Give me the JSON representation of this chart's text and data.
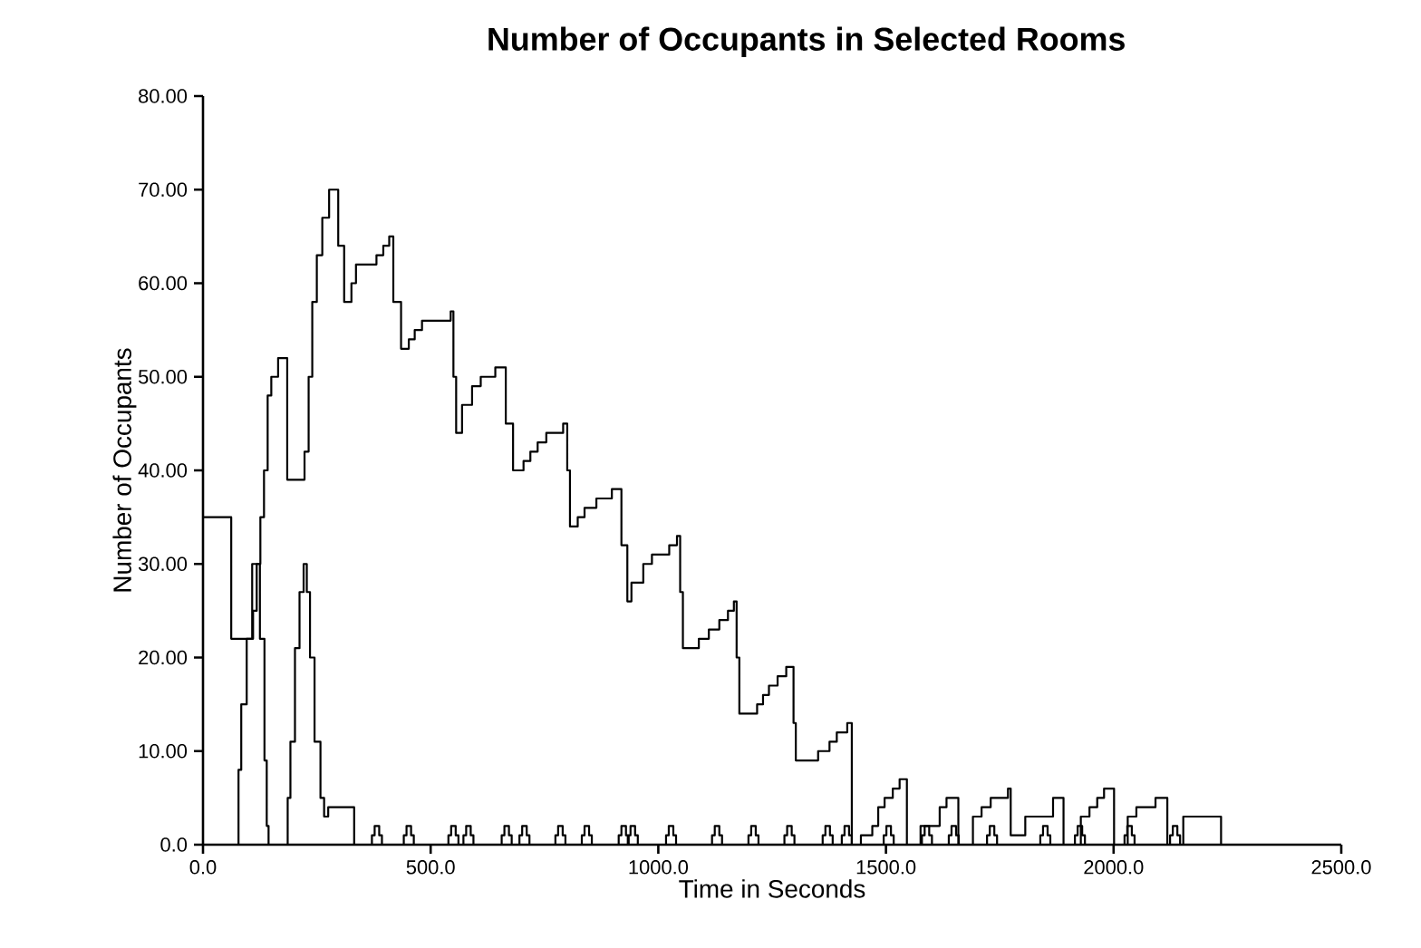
{
  "chart_data": {
    "type": "step",
    "title": "Number of Occupants in Selected Rooms",
    "xlabel": "Time in Seconds",
    "ylabel": "Number of Occupants",
    "xlim": [
      0,
      2500
    ],
    "ylim": [
      0,
      80
    ],
    "xticks": [
      {
        "value": 0,
        "label": "0.0"
      },
      {
        "value": 500,
        "label": "500.0"
      },
      {
        "value": 1000,
        "label": "1000.0"
      },
      {
        "value": 1500,
        "label": "1500.0"
      },
      {
        "value": 2000,
        "label": "2000.0"
      },
      {
        "value": 2500,
        "label": "2500.0"
      }
    ],
    "yticks": [
      {
        "value": 0,
        "label": "0.0"
      },
      {
        "value": 10,
        "label": "10.00"
      },
      {
        "value": 20,
        "label": "20.00"
      },
      {
        "value": 30,
        "label": "30.00"
      },
      {
        "value": 40,
        "label": "40.00"
      },
      {
        "value": 50,
        "label": "50.00"
      },
      {
        "value": 60,
        "label": "60.00"
      },
      {
        "value": 70,
        "label": "70.00"
      },
      {
        "value": 80,
        "label": "80.00"
      }
    ],
    "series": [
      {
        "color": "#000000",
        "x": [
          0,
          62,
          110,
          118,
          126,
          134,
          142,
          150,
          165,
          185,
          223,
          232,
          240,
          250,
          262,
          277,
          297,
          310,
          326,
          336,
          381,
          396,
          409,
          418,
          435,
          452,
          465,
          481,
          544,
          550,
          556,
          569,
          591,
          610,
          642,
          665,
          681,
          704,
          719,
          735,
          754,
          791,
          800,
          806,
          823,
          838,
          864,
          898,
          919,
          932,
          941,
          967,
          986,
          1024,
          1041,
          1048,
          1054,
          1089,
          1111,
          1134,
          1153,
          1166,
          1172,
          1178,
          1217,
          1230,
          1243,
          1262,
          1281,
          1297,
          1302,
          1351,
          1376,
          1392,
          1415,
          1425,
          1445,
          1470,
          1483,
          1497,
          1515,
          1530,
          1546,
          1576,
          1618,
          1633,
          1659,
          1691,
          1710,
          1730,
          1768,
          1774,
          1806,
          1867,
          1890,
          1928,
          1947,
          1964,
          1979,
          2001,
          2031,
          2050,
          2092,
          2118,
          2153,
          2236
        ],
        "values": [
          35,
          22,
          25,
          30,
          35,
          40,
          48,
          50,
          52,
          39,
          42,
          50,
          58,
          63,
          67,
          70,
          64,
          58,
          60,
          62,
          63,
          64,
          65,
          58,
          53,
          54,
          55,
          56,
          57,
          50,
          44,
          47,
          49,
          50,
          51,
          45,
          40,
          41,
          42,
          43,
          44,
          45,
          40,
          34,
          35,
          36,
          37,
          38,
          32,
          26,
          28,
          30,
          31,
          32,
          33,
          27,
          21,
          22,
          23,
          24,
          25,
          26,
          20,
          14,
          15,
          16,
          17,
          18,
          19,
          13,
          9,
          10,
          11,
          12,
          13,
          0,
          1,
          2,
          4,
          5,
          6,
          7,
          0,
          2,
          4,
          5,
          0,
          3,
          4,
          5,
          6,
          1,
          3,
          5,
          0,
          3,
          4,
          5,
          6,
          0,
          3,
          4,
          5,
          0,
          3,
          0
        ]
      },
      {
        "color": "#000000",
        "x": [
          0,
          72,
          78,
          84,
          96,
          108,
          116,
          125,
          135,
          140,
          144,
          181,
          186,
          192,
          202,
          212,
          221,
          228,
          235,
          245,
          258,
          266,
          275,
          332,
          371,
          377,
          387,
          393,
          441,
          447,
          457,
          463,
          539,
          545,
          555,
          561,
          572,
          578,
          588,
          594,
          656,
          662,
          672,
          678,
          695,
          701,
          711,
          717,
          774,
          780,
          790,
          796,
          832,
          838,
          848,
          854,
          913,
          919,
          929,
          935,
          933,
          939,
          949,
          955,
          1017,
          1023,
          1033,
          1039,
          1118,
          1124,
          1134,
          1140,
          1198,
          1204,
          1214,
          1220,
          1277,
          1283,
          1293,
          1299,
          1361,
          1367,
          1377,
          1383,
          1403,
          1409,
          1419,
          1425,
          1495,
          1501,
          1511,
          1517,
          1579,
          1585,
          1595,
          1601,
          1638,
          1644,
          1654,
          1660,
          1722,
          1728,
          1738,
          1744,
          1839,
          1845,
          1855,
          1861,
          1915,
          1921,
          1931,
          1937,
          2024,
          2030,
          2040,
          2046,
          2124,
          2130,
          2140,
          2146
        ],
        "values": [
          0,
          0,
          8,
          15,
          22,
          30,
          30,
          22,
          9,
          2,
          0,
          0,
          5,
          11,
          21,
          27,
          30,
          27,
          20,
          11,
          5,
          3,
          4,
          0,
          1,
          2,
          1,
          0,
          1,
          2,
          1,
          0,
          1,
          2,
          1,
          0,
          1,
          2,
          1,
          0,
          1,
          2,
          1,
          0,
          1,
          2,
          1,
          0,
          1,
          2,
          1,
          0,
          1,
          2,
          1,
          0,
          1,
          2,
          1,
          0,
          1,
          2,
          1,
          0,
          1,
          2,
          1,
          0,
          1,
          2,
          1,
          0,
          1,
          2,
          1,
          0,
          1,
          2,
          1,
          0,
          1,
          2,
          1,
          0,
          1,
          2,
          1,
          0,
          1,
          2,
          1,
          0,
          1,
          2,
          1,
          0,
          1,
          2,
          1,
          0,
          1,
          2,
          1,
          0,
          1,
          2,
          1,
          0,
          1,
          2,
          1,
          0,
          1,
          2,
          1,
          0,
          1,
          2,
          1,
          0
        ]
      }
    ]
  }
}
